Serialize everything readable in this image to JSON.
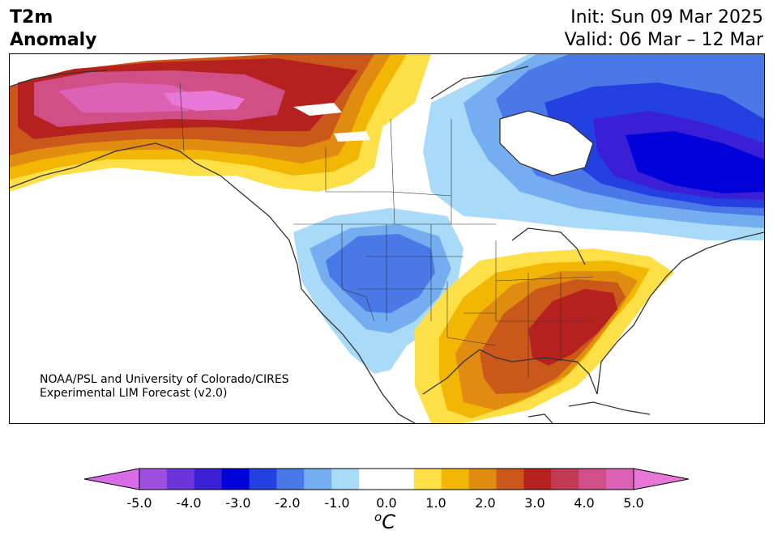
{
  "title": {
    "variable": "T2m",
    "subtitle": "Anomaly",
    "init": "Init: Sun 09 Mar 2025",
    "valid": "Valid: 06 Mar – 12 Mar"
  },
  "credit": {
    "line1": "NOAA/PSL and University of Colorado/CIRES",
    "line2": "Experimental LIM Forecast (v2.0)"
  },
  "colorbar": {
    "ticks": [
      "-5.0",
      "-4.0",
      "-3.0",
      "-2.0",
      "-1.0",
      "0.0",
      "1.0",
      "2.0",
      "3.0",
      "4.0",
      "5.0"
    ],
    "units_sup": "o",
    "units_main": "C",
    "colors": [
      "#d86ce8",
      "#9f4fe0",
      "#6b35db",
      "#3a1fd6",
      "#0000d8",
      "#2440e0",
      "#4a78e6",
      "#74aef0",
      "#a9daf8",
      "#ffffff",
      "#ffffff",
      "#fde048",
      "#f2b705",
      "#e08c10",
      "#c9581a",
      "#b4211f",
      "#c33a55",
      "#cf4f86",
      "#dc62b5",
      "#e878d8"
    ]
  },
  "map": {
    "colors": {
      "pink_strong": "#e878d8",
      "pink": "#cf4f86",
      "red": "#b4211f",
      "orange_red": "#c9581a",
      "orange": "#e08c10",
      "amber": "#f2b705",
      "yellow": "#fde048",
      "lightblue": "#a9daf8",
      "midblue": "#74aef0",
      "blue": "#4a78e6",
      "royal": "#2440e0",
      "deepblue": "#0000d8",
      "indigo": "#3a1fd6"
    }
  }
}
